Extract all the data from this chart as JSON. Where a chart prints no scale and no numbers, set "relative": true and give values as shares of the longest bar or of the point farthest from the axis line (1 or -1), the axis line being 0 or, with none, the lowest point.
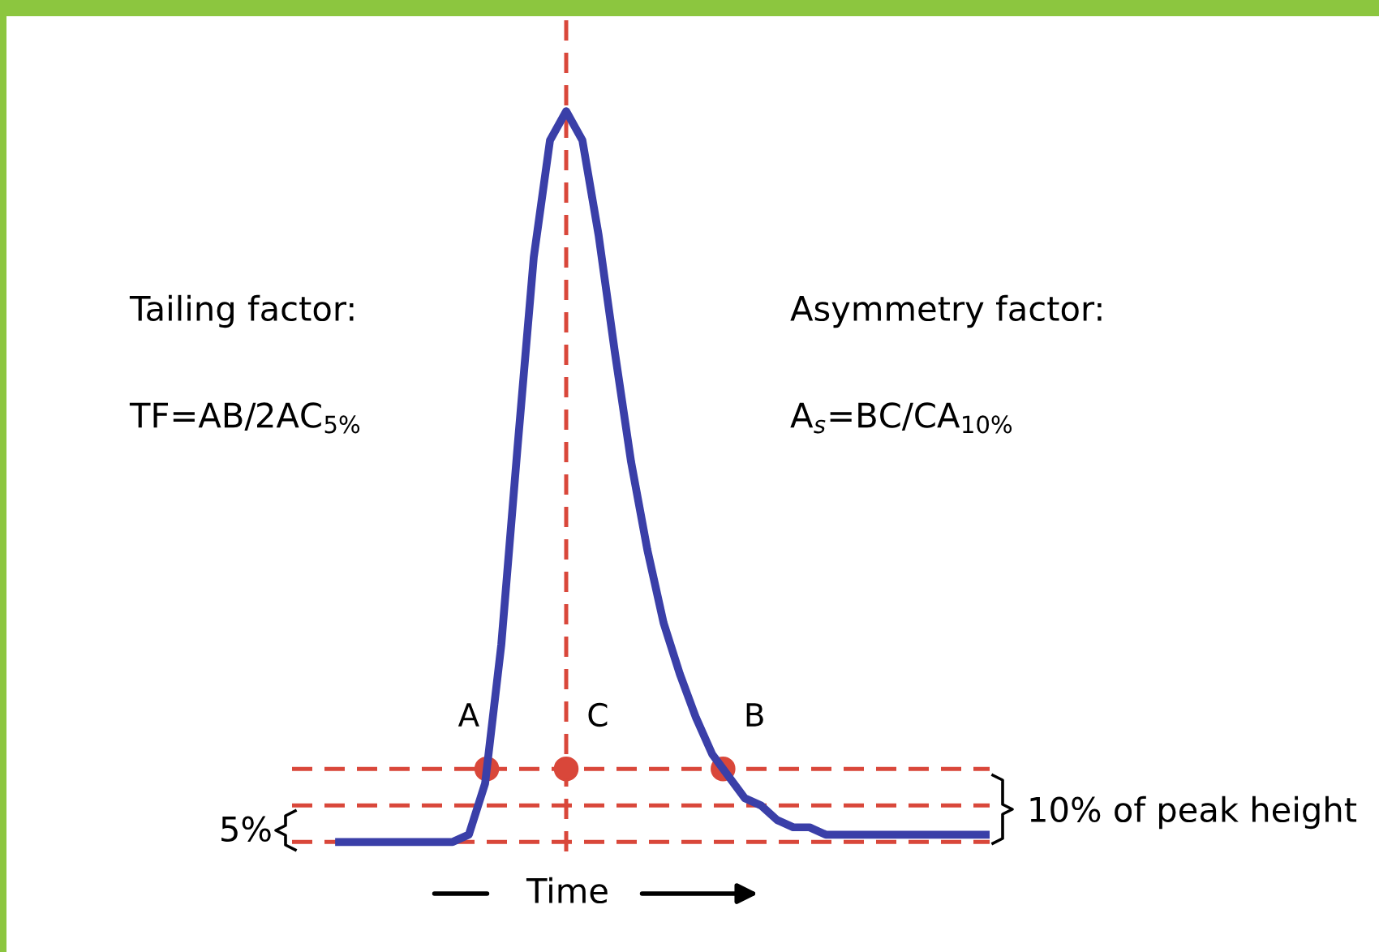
{
  "chart_data": {
    "type": "line",
    "relative": true,
    "categories": [
      null,
      null,
      null,
      null,
      null,
      null,
      null,
      null,
      null,
      null,
      null,
      null,
      null,
      null,
      null,
      null,
      null,
      null,
      null,
      null,
      null,
      null,
      null,
      null,
      null,
      null,
      null,
      null,
      null,
      null,
      null,
      null,
      null,
      null,
      null,
      null,
      null,
      null,
      null,
      null,
      null
    ],
    "series": [
      {
        "color": "#3a3fa8",
        "values": [
          0,
          0,
          0,
          0,
          0,
          0,
          0,
          0,
          0.01,
          0.08,
          0.27,
          0.54,
          0.8,
          0.96,
          1.0,
          0.96,
          0.83,
          0.67,
          0.52,
          0.4,
          0.3,
          0.23,
          0.17,
          0.12,
          0.09,
          0.06,
          0.05,
          0.03,
          0.02,
          0.02,
          0.01,
          0.01,
          0.01,
          0.01,
          0.01,
          0.01,
          0.01,
          0.01,
          0.01,
          0.01,
          0.01
        ]
      }
    ],
    "ref_lines": [
      {
        "axis": "y",
        "value": 0.1,
        "color": "#d9473a",
        "line_style": "dashed"
      },
      {
        "axis": "y",
        "value": 0.05,
        "color": "#d9473a",
        "line_style": "dashed"
      },
      {
        "axis": "y",
        "value": 0,
        "color": "#d9473a",
        "line_style": "dashed"
      },
      {
        "axis": "x",
        "color": "#d9473a",
        "line_style": "dashed"
      }
    ],
    "xlabel": "Time",
    "annotations": [
      "Tailing factor:",
      "TF=AB/2AC$_{5%}$",
      "Asymmetry factor:",
      "A$_{s}$=BC/CA$_{10%}$",
      "A",
      "C",
      "B",
      "5%",
      "10% of peak height"
    ]
  }
}
